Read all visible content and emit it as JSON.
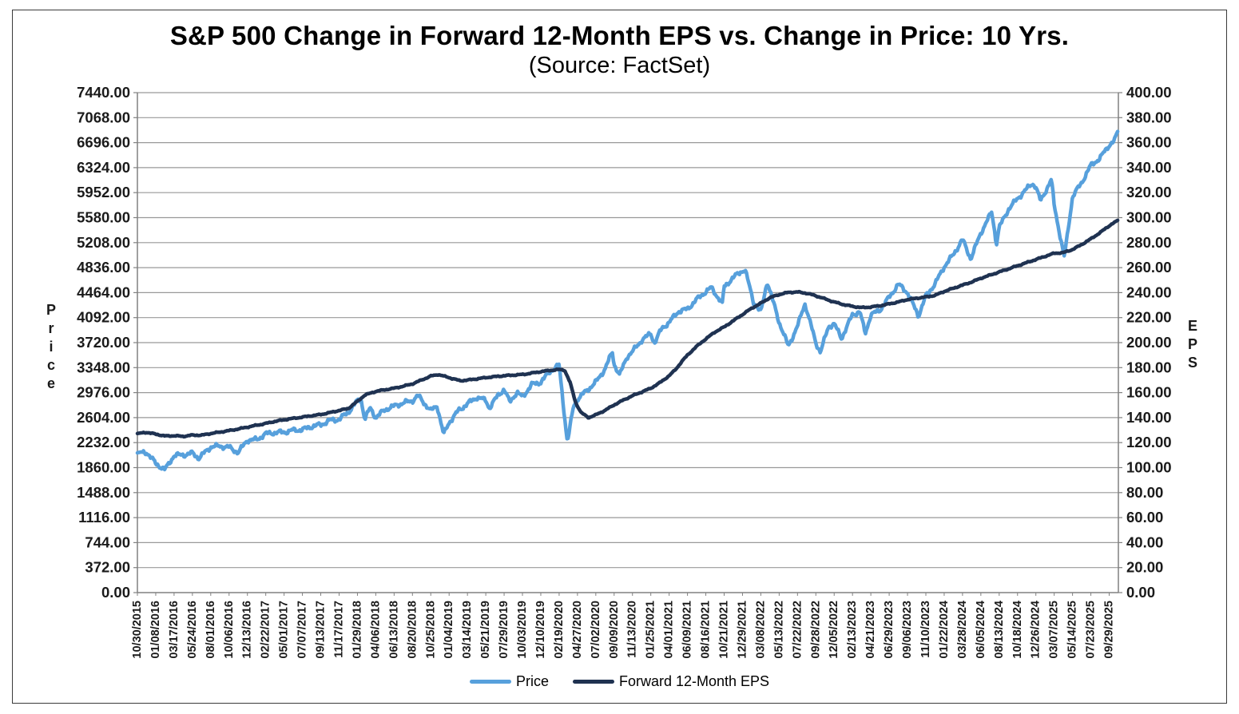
{
  "chart_data": {
    "type": "line",
    "title": "S&P 500 Change in Forward 12-Month EPS vs. Change in Price: 10 Yrs.",
    "subtitle": "(Source: FactSet)",
    "grid": "horizontal",
    "legend_position": "bottom",
    "colors": {
      "gridline": "#999999",
      "axis_frame": "#808080",
      "text": "#1a1a1a"
    },
    "left_axis": {
      "label": "Price",
      "min": 0,
      "max": 7440,
      "step": 372,
      "tick_labels": [
        "7440.00",
        "7068.00",
        "6696.00",
        "6324.00",
        "5952.00",
        "5580.00",
        "5208.00",
        "4836.00",
        "4464.00",
        "4092.00",
        "3720.00",
        "3348.00",
        "2976.00",
        "2604.00",
        "2232.00",
        "1860.00",
        "1488.00",
        "1116.00",
        "744.00",
        "372.00",
        "0.00"
      ]
    },
    "right_axis": {
      "label": "EPS",
      "min": 0,
      "max": 400,
      "step": 20,
      "tick_labels": [
        "400.00",
        "380.00",
        "360.00",
        "340.00",
        "320.00",
        "300.00",
        "280.00",
        "260.00",
        "240.00",
        "220.00",
        "200.00",
        "180.00",
        "160.00",
        "140.00",
        "120.00",
        "100.00",
        "80.00",
        "60.00",
        "40.00",
        "20.00",
        "0.00"
      ]
    },
    "x_axis": {
      "domain_end_index": 53.5,
      "tick_labels": [
        "10/30/2015",
        "01/08/2016",
        "03/17/2016",
        "05/24/2016",
        "08/01/2016",
        "10/06/2016",
        "12/13/2016",
        "02/22/2017",
        "05/01/2017",
        "07/07/2017",
        "09/13/2017",
        "11/17/2017",
        "01/29/2018",
        "04/06/2018",
        "06/13/2018",
        "08/20/2018",
        "10/25/2018",
        "01/04/2019",
        "03/14/2019",
        "05/21/2019",
        "07/29/2019",
        "10/03/2019",
        "12/10/2019",
        "02/19/2020",
        "04/27/2020",
        "07/02/2020",
        "09/09/2020",
        "11/13/2020",
        "01/25/2021",
        "04/01/2021",
        "06/09/2021",
        "08/16/2021",
        "10/21/2021",
        "12/29/2021",
        "03/08/2022",
        "05/13/2022",
        "07/22/2022",
        "09/28/2022",
        "12/05/2022",
        "02/13/2023",
        "04/21/2023",
        "06/29/2023",
        "09/06/2023",
        "11/10/2023",
        "01/22/2024",
        "03/28/2024",
        "06/05/2024",
        "08/13/2024",
        "10/18/2024",
        "12/26/2024",
        "03/07/2025",
        "05/14/2025",
        "07/23/2025",
        "09/29/2025"
      ]
    },
    "legend": [
      {
        "name": "Price",
        "color": "#57A0DC"
      },
      {
        "name": "Forward 12-Month EPS",
        "color": "#1F3251"
      }
    ],
    "series": [
      {
        "name": "Price",
        "axis": "left",
        "color": "#57A0DC",
        "points": [
          [
            0,
            2079
          ],
          [
            0.5,
            2089
          ],
          [
            1,
            1922
          ],
          [
            1.5,
            1829
          ],
          [
            2,
            2041
          ],
          [
            2.6,
            2052
          ],
          [
            3,
            2076
          ],
          [
            3.35,
            2001
          ],
          [
            4,
            2170
          ],
          [
            4.5,
            2180
          ],
          [
            5,
            2161
          ],
          [
            5.5,
            2085
          ],
          [
            6,
            2271
          ],
          [
            6.5,
            2275
          ],
          [
            7,
            2363
          ],
          [
            7.5,
            2381
          ],
          [
            8,
            2388
          ],
          [
            8.5,
            2416
          ],
          [
            9,
            2425
          ],
          [
            9.5,
            2472
          ],
          [
            10,
            2498
          ],
          [
            10.5,
            2562
          ],
          [
            11,
            2579
          ],
          [
            11.5,
            2683
          ],
          [
            12,
            2854
          ],
          [
            12.2,
            2873
          ],
          [
            12.4,
            2581
          ],
          [
            12.7,
            2748
          ],
          [
            13,
            2604
          ],
          [
            13.5,
            2722
          ],
          [
            14,
            2776
          ],
          [
            14.5,
            2822
          ],
          [
            15,
            2857
          ],
          [
            15.3,
            2931
          ],
          [
            16,
            2706
          ],
          [
            16.35,
            2782
          ],
          [
            16.7,
            2351
          ],
          [
            17,
            2532
          ],
          [
            17.5,
            2707
          ],
          [
            18,
            2809
          ],
          [
            18.5,
            2905
          ],
          [
            19,
            2864
          ],
          [
            19.2,
            2744
          ],
          [
            19.7,
            2952
          ],
          [
            20,
            3021
          ],
          [
            20.3,
            2841
          ],
          [
            20.7,
            2978
          ],
          [
            21,
            2911
          ],
          [
            21.5,
            3094
          ],
          [
            22,
            3132
          ],
          [
            22.5,
            3289
          ],
          [
            23,
            3386
          ],
          [
            23.45,
            2237
          ],
          [
            23.8,
            2790
          ],
          [
            24,
            2878
          ],
          [
            24.3,
            2956
          ],
          [
            24.7,
            3055
          ],
          [
            25,
            3130
          ],
          [
            25.5,
            3328
          ],
          [
            25.9,
            3581
          ],
          [
            26,
            3399
          ],
          [
            26.3,
            3237
          ],
          [
            26.7,
            3509
          ],
          [
            27,
            3585
          ],
          [
            27.5,
            3756
          ],
          [
            28,
            3855
          ],
          [
            28.2,
            3714
          ],
          [
            28.6,
            3932
          ],
          [
            29,
            4020
          ],
          [
            29.5,
            4183
          ],
          [
            30,
            4219
          ],
          [
            30.5,
            4362
          ],
          [
            31,
            4480
          ],
          [
            31.3,
            4537
          ],
          [
            31.9,
            4300
          ],
          [
            32,
            4550
          ],
          [
            32.5,
            4690
          ],
          [
            33,
            4793
          ],
          [
            33.15,
            4797
          ],
          [
            33.6,
            4327
          ],
          [
            34,
            4171
          ],
          [
            34.35,
            4631
          ],
          [
            35,
            4024
          ],
          [
            35.5,
            3667
          ],
          [
            36,
            3962
          ],
          [
            36.4,
            4305
          ],
          [
            37,
            3719
          ],
          [
            37.25,
            3577
          ],
          [
            37.7,
            3964
          ],
          [
            38,
            3999
          ],
          [
            38.4,
            3783
          ],
          [
            39,
            4137
          ],
          [
            39.4,
            4180
          ],
          [
            39.7,
            3856
          ],
          [
            40,
            4134
          ],
          [
            40.5,
            4205
          ],
          [
            41,
            4396
          ],
          [
            41.5,
            4589
          ],
          [
            42,
            4465
          ],
          [
            42.6,
            4117
          ],
          [
            43,
            4415
          ],
          [
            43.5,
            4594
          ],
          [
            44,
            4850
          ],
          [
            44.5,
            5030
          ],
          [
            45,
            5254
          ],
          [
            45.45,
            4967
          ],
          [
            46,
            5354
          ],
          [
            46.6,
            5667
          ],
          [
            46.85,
            5186
          ],
          [
            47,
            5434
          ],
          [
            47.5,
            5702
          ],
          [
            48,
            5865
          ],
          [
            48.8,
            6090
          ],
          [
            49,
            6038
          ],
          [
            49.25,
            5827
          ],
          [
            49.85,
            6144
          ],
          [
            50,
            5770
          ],
          [
            50.55,
            4983
          ],
          [
            51,
            5893
          ],
          [
            51.5,
            6102
          ],
          [
            52,
            6359
          ],
          [
            52.5,
            6466
          ],
          [
            53,
            6661
          ],
          [
            53.25,
            6715
          ],
          [
            53.5,
            6890
          ]
        ]
      },
      {
        "name": "Forward 12-Month EPS",
        "axis": "right",
        "color": "#1F3251",
        "points": [
          [
            0,
            127.3
          ],
          [
            0.5,
            128.2
          ],
          [
            1,
            126.8
          ],
          [
            1.5,
            125.3
          ],
          [
            2,
            125.5
          ],
          [
            2.5,
            125.0
          ],
          [
            3,
            126.0
          ],
          [
            3.5,
            125.9
          ],
          [
            4,
            127.3
          ],
          [
            4.5,
            128.4
          ],
          [
            5,
            129.6
          ],
          [
            5.5,
            130.9
          ],
          [
            6,
            132.4
          ],
          [
            6.5,
            133.9
          ],
          [
            7,
            135.3
          ],
          [
            7.5,
            137.0
          ],
          [
            8,
            138.3
          ],
          [
            8.5,
            139.4
          ],
          [
            9,
            140.4
          ],
          [
            9.5,
            141.5
          ],
          [
            10,
            142.5
          ],
          [
            10.5,
            144.0
          ],
          [
            11,
            145.7
          ],
          [
            11.5,
            147.3
          ],
          [
            12,
            153.0
          ],
          [
            12.4,
            158.0
          ],
          [
            13,
            161.0
          ],
          [
            13.5,
            162.3
          ],
          [
            14,
            163.5
          ],
          [
            14.5,
            165.1
          ],
          [
            15,
            167.0
          ],
          [
            15.5,
            170.1
          ],
          [
            16,
            173.2
          ],
          [
            16.4,
            174.5
          ],
          [
            17,
            172.0
          ],
          [
            17.6,
            169.5
          ],
          [
            18,
            170.0
          ],
          [
            18.5,
            171.0
          ],
          [
            19,
            172.0
          ],
          [
            19.5,
            172.8
          ],
          [
            20,
            173.5
          ],
          [
            20.5,
            174.0
          ],
          [
            21,
            174.5
          ],
          [
            21.5,
            175.6
          ],
          [
            22,
            176.8
          ],
          [
            22.5,
            177.8
          ],
          [
            23,
            178.5
          ],
          [
            23.3,
            178.0
          ],
          [
            23.6,
            168.0
          ],
          [
            23.9,
            152.0
          ],
          [
            24.2,
            144.0
          ],
          [
            24.6,
            140.0
          ],
          [
            25,
            142.2
          ],
          [
            25.5,
            145.8
          ],
          [
            26,
            150.2
          ],
          [
            26.5,
            154.0
          ],
          [
            27,
            157.5
          ],
          [
            27.5,
            160.5
          ],
          [
            28,
            163.5
          ],
          [
            28.5,
            168.0
          ],
          [
            29,
            173.5
          ],
          [
            29.35,
            178.5
          ],
          [
            29.7,
            185.0
          ],
          [
            30,
            190.0
          ],
          [
            30.5,
            197.0
          ],
          [
            31,
            203.0
          ],
          [
            31.5,
            208.5
          ],
          [
            32,
            212.5
          ],
          [
            32.5,
            217.5
          ],
          [
            33,
            222.5
          ],
          [
            33.5,
            227.5
          ],
          [
            34,
            231.5
          ],
          [
            34.5,
            236.0
          ],
          [
            35,
            238.5
          ],
          [
            35.5,
            240.2
          ],
          [
            36,
            240.5
          ],
          [
            36.5,
            239.5
          ],
          [
            37,
            237.5
          ],
          [
            37.5,
            235.0
          ],
          [
            38,
            232.5
          ],
          [
            38.5,
            230.5
          ],
          [
            39,
            229.0
          ],
          [
            39.5,
            228.0
          ],
          [
            40,
            228.5
          ],
          [
            40.5,
            229.5
          ],
          [
            41,
            231.0
          ],
          [
            41.5,
            232.5
          ],
          [
            42,
            234.5
          ],
          [
            42.5,
            235.5
          ],
          [
            43,
            236.5
          ],
          [
            43.5,
            237.8
          ],
          [
            44,
            241.0
          ],
          [
            44.5,
            243.5
          ],
          [
            45,
            246.0
          ],
          [
            45.5,
            248.5
          ],
          [
            46,
            251.5
          ],
          [
            46.5,
            254.0
          ],
          [
            47,
            256.5
          ],
          [
            47.5,
            259.0
          ],
          [
            48,
            261.5
          ],
          [
            48.5,
            264.0
          ],
          [
            49,
            266.5
          ],
          [
            49.5,
            269.0
          ],
          [
            50,
            271.5
          ],
          [
            50.5,
            272.0
          ],
          [
            51,
            274.5
          ],
          [
            51.5,
            278.5
          ],
          [
            52,
            283.0
          ],
          [
            52.5,
            288.0
          ],
          [
            53,
            293.5
          ],
          [
            53.5,
            298.2
          ]
        ]
      }
    ]
  }
}
